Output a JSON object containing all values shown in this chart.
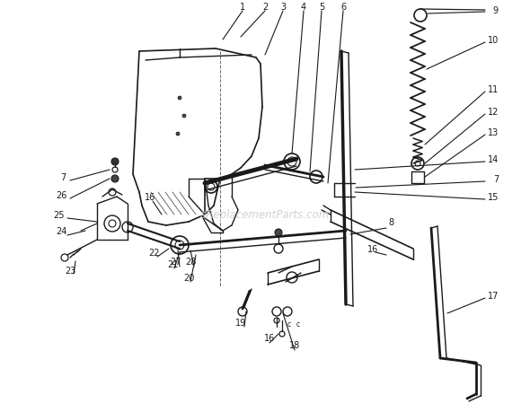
{
  "bg_color": "#ffffff",
  "line_color": "#1a1a1a",
  "watermark": "aReplacementParts.com",
  "fig_width": 5.9,
  "fig_height": 4.6,
  "dpi": 100
}
